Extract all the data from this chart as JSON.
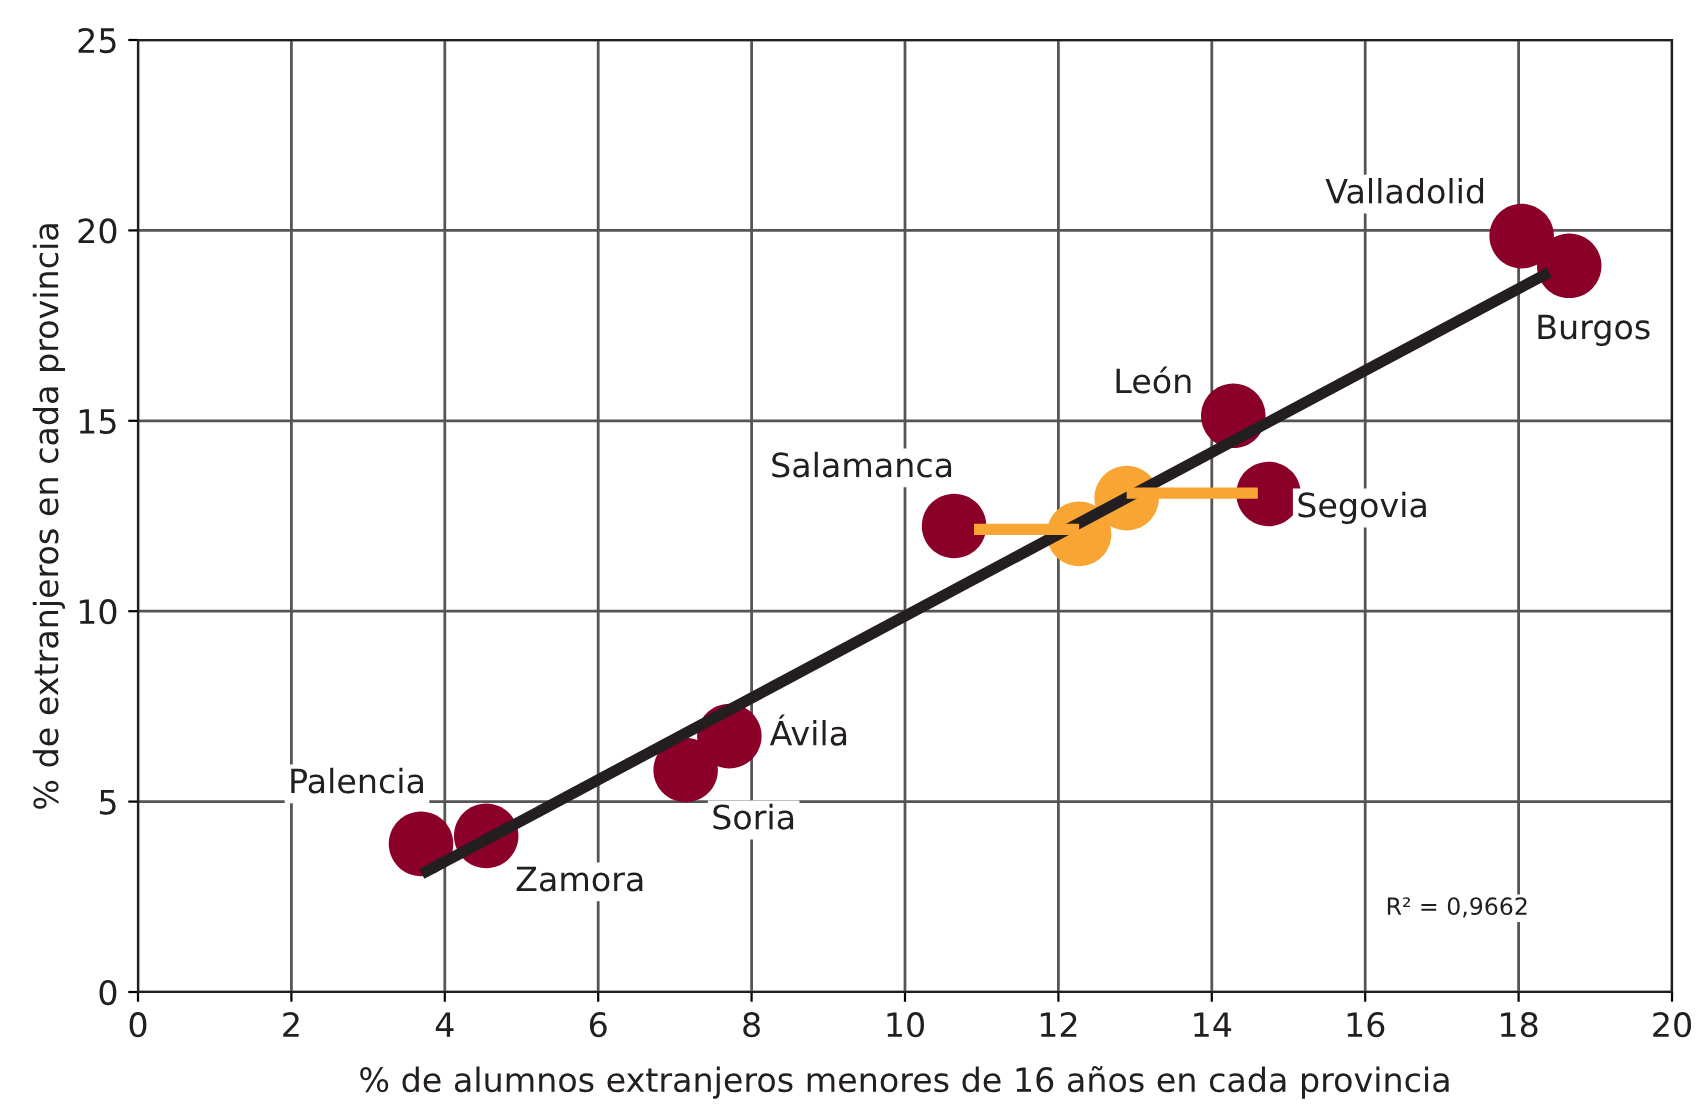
{
  "chart_data": {
    "type": "scatter",
    "xlabel": "% de alumnos extranjeros menores de 16 años en cada provincia",
    "ylabel": "% de extranjeros en cada provincia",
    "xlim": [
      0,
      20
    ],
    "xticks": [
      0,
      2,
      4,
      6,
      8,
      10,
      12,
      14,
      16,
      18,
      20
    ],
    "ylim": [
      0,
      25
    ],
    "yticks": [
      0,
      5,
      10,
      15,
      20,
      25
    ],
    "grid": true,
    "legend": false,
    "series": [
      {
        "type": "line",
        "color": "#231f20",
        "marker": "none",
        "x": [
          3.7,
          18.4
        ],
        "values": [
          3.1,
          18.9
        ]
      },
      {
        "type": "line",
        "color": "#f9a533",
        "marker": "none",
        "x": [
          10.9,
          12.27
        ],
        "values": [
          12.15,
          12.15
        ]
      },
      {
        "type": "line",
        "color": "#f9a533",
        "marker": "none",
        "x": [
          12.89,
          14.6
        ],
        "values": [
          13.1,
          13.1
        ]
      },
      {
        "color": "#f9a533",
        "marker": "circle",
        "x": [
          12.27,
          12.89
        ],
        "values": [
          12.03,
          12.97
        ]
      },
      {
        "color": "#8b0029",
        "marker": "circle",
        "x": [
          3.69,
          4.54,
          7.14,
          7.71,
          10.64,
          14.28,
          14.74,
          18.04,
          18.66
        ],
        "values": [
          3.89,
          4.1,
          5.83,
          6.72,
          12.24,
          15.13,
          13.08,
          19.85,
          19.07
        ]
      }
    ],
    "annotations": [
      {
        "text": "Palencia",
        "x": 3.69,
        "y": 3.89
      },
      {
        "text": "Zamora",
        "x": 4.54,
        "y": 4.1
      },
      {
        "text": "Soria",
        "x": 7.14,
        "y": 5.83
      },
      {
        "text": "Ávila",
        "x": 7.71,
        "y": 6.72
      },
      {
        "text": "Salamanca",
        "x": 10.64,
        "y": 12.24
      },
      {
        "text": "León",
        "x": 14.28,
        "y": 15.13
      },
      {
        "text": "Segovia",
        "x": 14.74,
        "y": 13.08
      },
      {
        "text": "Valladolid",
        "x": 18.04,
        "y": 19.85
      },
      {
        "text": "Burgos",
        "x": 18.66,
        "y": 19.07
      },
      "R² = 0,9662"
    ]
  }
}
